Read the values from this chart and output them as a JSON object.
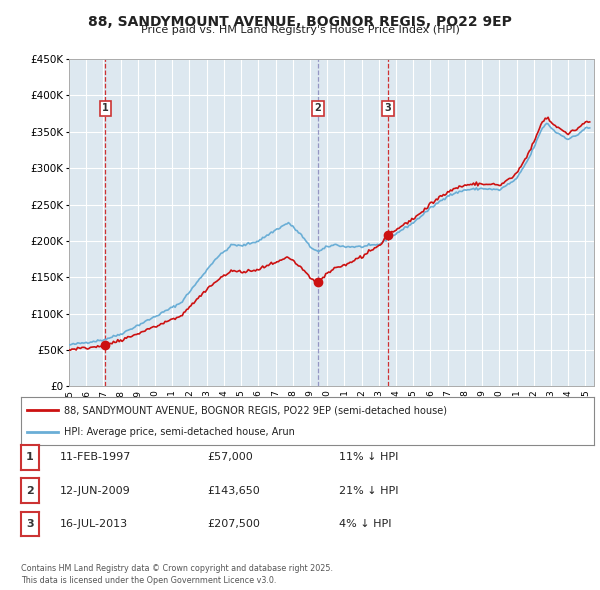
{
  "title": "88, SANDYMOUNT AVENUE, BOGNOR REGIS, PO22 9EP",
  "subtitle": "Price paid vs. HM Land Registry's House Price Index (HPI)",
  "title_color": "#222222",
  "bg_color": "#ffffff",
  "plot_bg_color": "#dde8f0",
  "grid_color": "#ffffff",
  "hpi_color": "#6aaed6",
  "price_color": "#cc1111",
  "ylim": [
    0,
    450000
  ],
  "yticks": [
    0,
    50000,
    100000,
    150000,
    200000,
    250000,
    300000,
    350000,
    400000,
    450000
  ],
  "ytick_labels": [
    "£0",
    "£50K",
    "£100K",
    "£150K",
    "£200K",
    "£250K",
    "£300K",
    "£350K",
    "£400K",
    "£450K"
  ],
  "xlim_start": 1995.0,
  "xlim_end": 2025.5,
  "xtick_years": [
    1995,
    1996,
    1997,
    1998,
    1999,
    2000,
    2001,
    2002,
    2003,
    2004,
    2005,
    2006,
    2007,
    2008,
    2009,
    2010,
    2011,
    2012,
    2013,
    2014,
    2015,
    2016,
    2017,
    2018,
    2019,
    2020,
    2021,
    2022,
    2023,
    2024,
    2025
  ],
  "sale_dates": [
    1997.12,
    2009.45,
    2013.54
  ],
  "sale_prices": [
    57000,
    143650,
    207500
  ],
  "sale_labels": [
    "1",
    "2",
    "3"
  ],
  "vline_colors": [
    "#cc1111",
    "#8888bb",
    "#cc1111"
  ],
  "vline_styles": [
    "--",
    "--",
    "--"
  ],
  "legend_entries": [
    "88, SANDYMOUNT AVENUE, BOGNOR REGIS, PO22 9EP (semi-detached house)",
    "HPI: Average price, semi-detached house, Arun"
  ],
  "table_rows": [
    {
      "num": "1",
      "date": "11-FEB-1997",
      "price": "£57,000",
      "pct": "11% ↓ HPI"
    },
    {
      "num": "2",
      "date": "12-JUN-2009",
      "price": "£143,650",
      "pct": "21% ↓ HPI"
    },
    {
      "num": "3",
      "date": "16-JUL-2013",
      "price": "£207,500",
      "pct": "4% ↓ HPI"
    }
  ],
  "footnote": "Contains HM Land Registry data © Crown copyright and database right 2025.\nThis data is licensed under the Open Government Licence v3.0."
}
